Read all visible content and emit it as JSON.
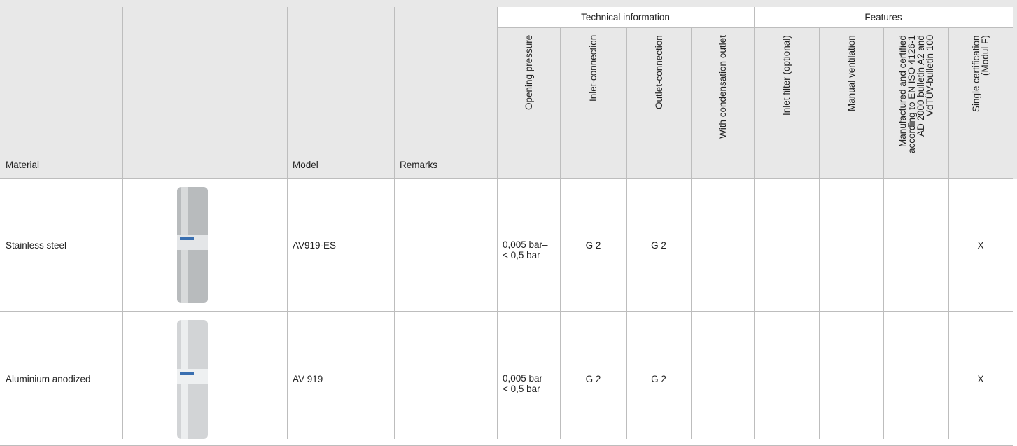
{
  "table": {
    "groups": [
      "Technical information",
      "Features"
    ],
    "header": [
      "Material",
      "Model",
      "Remarks",
      "Opening pressure",
      "Inlet-connection",
      "Outlet-connection",
      "With condensation outlet",
      "Inlet filter (optional)",
      "Manual ventilation",
      [
        "Manufactured and certified",
        "according to EN ISO 4126-1",
        "AD 2000 bulletin A2 and",
        "VdTÜV-bulletin 100"
      ],
      [
        "Single certification",
        "(Modul F)"
      ]
    ],
    "rows": [
      {
        "material": "Stainless steel",
        "model": "AV919-ES",
        "opening_pressure": [
          "0,005 bar–",
          "< 0,5 bar"
        ],
        "inlet_connection": "G 2",
        "outlet_connection": "G 2",
        "single_certification": "X"
      },
      {
        "material": "Aluminium anodized",
        "model": "AV 919",
        "opening_pressure": [
          "0,005 bar–",
          "< 0,5 bar"
        ],
        "inlet_connection": "G 2",
        "outlet_connection": "G 2",
        "single_certification": "X"
      }
    ]
  }
}
